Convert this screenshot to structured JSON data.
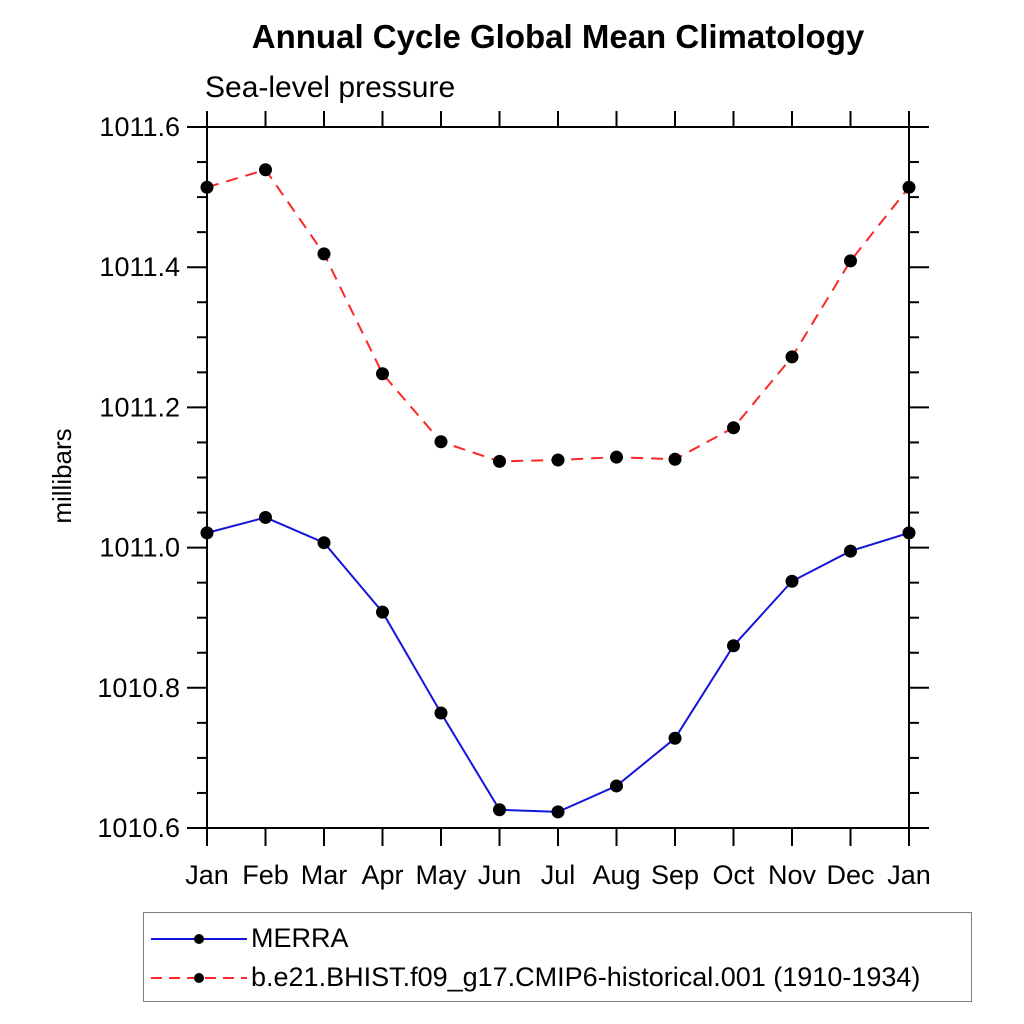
{
  "header": {
    "title": "Annual Cycle Global Mean Climatology",
    "subtitle": "Sea-level pressure"
  },
  "chart_data": {
    "type": "line",
    "title": "Annual Cycle Global Mean Climatology",
    "subtitle": "Sea-level pressure",
    "xlabel": "",
    "ylabel": "millibars",
    "categories": [
      "Jan",
      "Feb",
      "Mar",
      "Apr",
      "May",
      "Jun",
      "Jul",
      "Aug",
      "Sep",
      "Oct",
      "Nov",
      "Dec",
      "Jan"
    ],
    "ylim": [
      1010.6,
      1011.6
    ],
    "y_major_ticks": [
      1010.6,
      1010.8,
      1011.0,
      1011.2,
      1011.4,
      1011.6
    ],
    "y_minor_step": 0.05,
    "grid": false,
    "frame": "box-with-outward-ticks",
    "legend_position": "bottom-left-box",
    "axis_color": "#000000",
    "marker_color": "#000000",
    "series": [
      {
        "name": "MERRA",
        "color": "#1414dc",
        "line_style": "solid",
        "marker": "filled-circle",
        "values": [
          1011.021,
          1011.043,
          1011.007,
          1010.908,
          1010.764,
          1010.626,
          1010.623,
          1010.66,
          1010.728,
          1010.86,
          1010.952,
          1010.995,
          1011.021
        ]
      },
      {
        "name": "b.e21.BHIST.f09_g17.CMIP6-historical.001 (1910-1934)",
        "color": "#fa2828",
        "line_style": "dashed",
        "marker": "filled-circle",
        "values": [
          1011.514,
          1011.539,
          1011.419,
          1011.248,
          1011.151,
          1011.123,
          1011.125,
          1011.129,
          1011.126,
          1011.171,
          1011.272,
          1011.409,
          1011.514
        ]
      }
    ]
  }
}
